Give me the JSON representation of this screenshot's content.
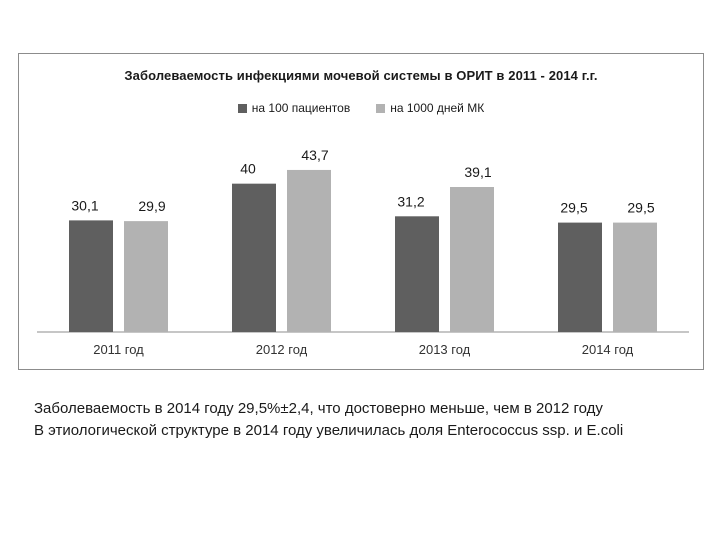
{
  "chart_data": {
    "type": "bar",
    "title": "Заболеваемость инфекциями мочевой системы в ОРИТ в 2011 - 2014 г.г.",
    "categories": [
      "2011 год",
      "2012 год",
      "2013 год",
      "2014 год"
    ],
    "series": [
      {
        "name": "на 100 пациентов",
        "values": [
          30.1,
          40,
          31.2,
          29.5
        ],
        "labels": [
          "30,1",
          "40",
          "31,2",
          "29,5"
        ],
        "color": "#5f5f5f"
      },
      {
        "name": "на 1000 дней МК",
        "values": [
          29.9,
          43.7,
          39.1,
          29.5
        ],
        "labels": [
          "29,9",
          "43,7",
          "39,1",
          "29,5"
        ],
        "color": "#b2b2b2"
      }
    ],
    "ylim": [
      0,
      48
    ],
    "grid": false,
    "legend_position": "top",
    "xlabel": "",
    "ylabel": ""
  },
  "caption": {
    "line1": "Заболеваемость в 2014 году 29,5%±2,4, что достоверно меньше, чем в 2012 году",
    "line2": "В этиологической структуре в 2014 году увеличилась доля Enterococcus ssp. и E.coli"
  }
}
